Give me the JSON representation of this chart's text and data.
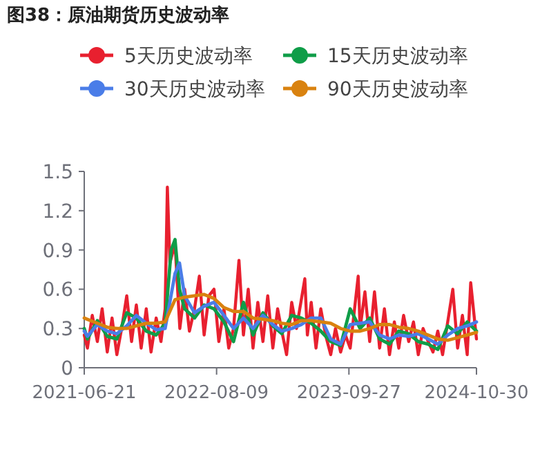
{
  "chart_data": {
    "type": "line",
    "title": "图38：原油期货历史波动率",
    "legend": "top",
    "grid": false,
    "marker": "none",
    "line_style": "solid",
    "ylim": [
      0,
      1.5
    ],
    "yticks": [
      0,
      0.3,
      0.6,
      0.9,
      1.2,
      1.5
    ],
    "xlim": [
      "2021-06-21",
      "2024-10-30"
    ],
    "xticks": [
      {
        "value": "2021-06-21",
        "label": "2021-06-21"
      },
      {
        "value": "2022-08-09",
        "label": "2022-08-09"
      },
      {
        "value": "2023-09-27",
        "label": "2023-09-27"
      },
      {
        "value": "2024-10-30",
        "label": "2024-10-30"
      }
    ],
    "series": [
      {
        "name": "5天历史波动率",
        "color": "#e8202f",
        "x": [
          "2021-06-21",
          "2021-07-01",
          "2021-07-16",
          "2021-08-01",
          "2021-08-16",
          "2021-09-01",
          "2021-09-16",
          "2021-10-01",
          "2021-10-16",
          "2021-11-01",
          "2021-11-16",
          "2021-12-01",
          "2021-12-16",
          "2022-01-01",
          "2022-01-16",
          "2022-02-01",
          "2022-02-16",
          "2022-03-01",
          "2022-03-08",
          "2022-03-16",
          "2022-04-01",
          "2022-04-16",
          "2022-05-01",
          "2022-05-16",
          "2022-06-01",
          "2022-06-16",
          "2022-07-01",
          "2022-07-16",
          "2022-08-01",
          "2022-08-16",
          "2022-09-01",
          "2022-09-16",
          "2022-10-01",
          "2022-10-18",
          "2022-11-01",
          "2022-11-16",
          "2022-12-01",
          "2022-12-16",
          "2023-01-01",
          "2023-01-16",
          "2023-02-01",
          "2023-02-16",
          "2023-03-01",
          "2023-03-16",
          "2023-04-01",
          "2023-04-16",
          "2023-05-12",
          "2023-05-20",
          "2023-06-01",
          "2023-06-16",
          "2023-07-01",
          "2023-07-16",
          "2023-08-01",
          "2023-08-16",
          "2023-09-01",
          "2023-09-16",
          "2023-10-01",
          "2023-10-26",
          "2023-11-01",
          "2023-11-16",
          "2023-12-01",
          "2023-12-16",
          "2024-01-01",
          "2024-01-16",
          "2024-02-01",
          "2024-02-16",
          "2024-03-01",
          "2024-03-16",
          "2024-04-01",
          "2024-04-16",
          "2024-05-01",
          "2024-05-16",
          "2024-06-01",
          "2024-06-16",
          "2024-07-01",
          "2024-07-16",
          "2024-08-01",
          "2024-08-17",
          "2024-09-01",
          "2024-09-16",
          "2024-10-01",
          "2024-10-12",
          "2024-10-30"
        ],
        "values": [
          0.25,
          0.15,
          0.4,
          0.2,
          0.45,
          0.12,
          0.38,
          0.1,
          0.3,
          0.55,
          0.2,
          0.48,
          0.15,
          0.45,
          0.12,
          0.38,
          0.2,
          0.45,
          1.38,
          0.8,
          0.95,
          0.3,
          0.6,
          0.28,
          0.45,
          0.7,
          0.25,
          0.55,
          0.6,
          0.2,
          0.45,
          0.15,
          0.3,
          0.82,
          0.25,
          0.6,
          0.15,
          0.5,
          0.2,
          0.55,
          0.15,
          0.45,
          0.28,
          0.1,
          0.5,
          0.3,
          0.68,
          0.25,
          0.5,
          0.15,
          0.45,
          0.25,
          0.1,
          0.3,
          0.12,
          0.25,
          0.15,
          0.7,
          0.3,
          0.58,
          0.2,
          0.58,
          0.15,
          0.45,
          0.1,
          0.35,
          0.15,
          0.4,
          0.2,
          0.35,
          0.1,
          0.3,
          0.2,
          0.12,
          0.28,
          0.1,
          0.35,
          0.6,
          0.15,
          0.4,
          0.1,
          0.65,
          0.22
        ]
      },
      {
        "name": "15天历史波动率",
        "color": "#0f9d48",
        "x": [
          "2021-06-21",
          "2021-07-01",
          "2021-08-01",
          "2021-09-01",
          "2021-10-01",
          "2021-11-01",
          "2021-12-01",
          "2022-01-01",
          "2022-02-01",
          "2022-03-01",
          "2022-03-20",
          "2022-04-01",
          "2022-04-15",
          "2022-05-01",
          "2022-06-01",
          "2022-07-01",
          "2022-08-01",
          "2022-09-01",
          "2022-10-01",
          "2022-11-01",
          "2022-12-01",
          "2023-01-01",
          "2023-02-01",
          "2023-03-01",
          "2023-04-01",
          "2023-05-01",
          "2023-06-01",
          "2023-07-01",
          "2023-08-01",
          "2023-09-01",
          "2023-10-01",
          "2023-11-01",
          "2023-12-01",
          "2024-01-01",
          "2024-02-01",
          "2024-03-01",
          "2024-04-01",
          "2024-05-01",
          "2024-06-01",
          "2024-07-01",
          "2024-08-01",
          "2024-09-01",
          "2024-10-01",
          "2024-10-30"
        ],
        "values": [
          0.3,
          0.22,
          0.36,
          0.24,
          0.22,
          0.42,
          0.38,
          0.28,
          0.25,
          0.34,
          0.9,
          0.98,
          0.6,
          0.45,
          0.38,
          0.48,
          0.45,
          0.35,
          0.2,
          0.5,
          0.25,
          0.42,
          0.32,
          0.26,
          0.4,
          0.38,
          0.34,
          0.28,
          0.2,
          0.17,
          0.45,
          0.3,
          0.38,
          0.22,
          0.18,
          0.28,
          0.26,
          0.2,
          0.18,
          0.14,
          0.32,
          0.26,
          0.35,
          0.28
        ]
      },
      {
        "name": "30天历史波动率",
        "color": "#4a7de8",
        "x": [
          "2021-06-21",
          "2021-07-01",
          "2021-08-01",
          "2021-09-01",
          "2021-10-01",
          "2021-11-01",
          "2021-12-01",
          "2022-01-01",
          "2022-02-01",
          "2022-03-01",
          "2022-04-01",
          "2022-04-15",
          "2022-05-01",
          "2022-06-01",
          "2022-07-01",
          "2022-08-01",
          "2022-09-01",
          "2022-10-01",
          "2022-11-01",
          "2022-12-01",
          "2023-01-01",
          "2023-02-01",
          "2023-03-01",
          "2023-04-01",
          "2023-05-01",
          "2023-06-01",
          "2023-07-01",
          "2023-08-01",
          "2023-09-01",
          "2023-10-01",
          "2023-11-01",
          "2023-12-01",
          "2024-01-01",
          "2024-02-01",
          "2024-03-01",
          "2024-04-01",
          "2024-05-01",
          "2024-06-01",
          "2024-07-01",
          "2024-08-01",
          "2024-09-01",
          "2024-10-01",
          "2024-10-30"
        ],
        "values": [
          0.28,
          0.24,
          0.33,
          0.28,
          0.26,
          0.32,
          0.4,
          0.34,
          0.29,
          0.3,
          0.72,
          0.8,
          0.55,
          0.42,
          0.47,
          0.5,
          0.4,
          0.3,
          0.38,
          0.3,
          0.4,
          0.33,
          0.28,
          0.3,
          0.33,
          0.38,
          0.38,
          0.22,
          0.18,
          0.33,
          0.34,
          0.35,
          0.25,
          0.22,
          0.25,
          0.24,
          0.26,
          0.22,
          0.18,
          0.25,
          0.3,
          0.32,
          0.35
        ]
      },
      {
        "name": "90天历史波动率",
        "color": "#d9820f",
        "x": [
          "2021-06-21",
          "2021-07-01",
          "2021-08-01",
          "2021-09-01",
          "2021-10-01",
          "2021-11-01",
          "2021-12-01",
          "2022-01-01",
          "2022-02-01",
          "2022-03-01",
          "2022-04-01",
          "2022-05-01",
          "2022-06-01",
          "2022-07-01",
          "2022-08-01",
          "2022-09-01",
          "2022-10-01",
          "2022-11-01",
          "2022-12-01",
          "2023-01-01",
          "2023-02-01",
          "2023-03-01",
          "2023-04-01",
          "2023-05-01",
          "2023-06-01",
          "2023-07-01",
          "2023-08-01",
          "2023-09-01",
          "2023-10-01",
          "2023-11-01",
          "2023-12-01",
          "2024-01-01",
          "2024-02-01",
          "2024-03-01",
          "2024-04-01",
          "2024-05-01",
          "2024-06-01",
          "2024-07-01",
          "2024-08-01",
          "2024-09-01",
          "2024-10-01",
          "2024-10-30"
        ],
        "values": [
          0.38,
          0.37,
          0.34,
          0.31,
          0.3,
          0.3,
          0.32,
          0.34,
          0.34,
          0.35,
          0.52,
          0.54,
          0.55,
          0.56,
          0.53,
          0.46,
          0.43,
          0.43,
          0.38,
          0.37,
          0.36,
          0.34,
          0.33,
          0.36,
          0.36,
          0.35,
          0.34,
          0.3,
          0.28,
          0.28,
          0.3,
          0.33,
          0.33,
          0.31,
          0.3,
          0.28,
          0.25,
          0.22,
          0.21,
          0.23,
          0.25,
          0.27
        ]
      }
    ]
  }
}
